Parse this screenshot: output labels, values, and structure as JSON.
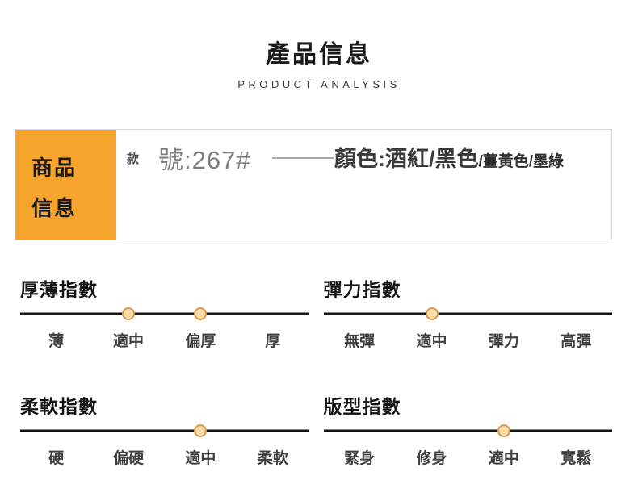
{
  "header": {
    "title": "產品信息",
    "subtitle": "PRODUCT ANALYSIS"
  },
  "info_box": {
    "label_line1": "商品",
    "label_line2": "信息",
    "style_prefix": "款",
    "style_number": "號:267#",
    "color_main": "顏色:酒紅/黑色",
    "color_extra": "/薑黃色/墨綠"
  },
  "colors": {
    "accent_orange": "#F7A42C",
    "dot_fill": "#FADCA8",
    "dot_border": "#D9994E",
    "slider_line": "#141414"
  },
  "indices": [
    {
      "title": "厚薄指數",
      "labels": [
        "薄",
        "適中",
        "偏厚",
        "厚"
      ],
      "dots": [
        1,
        2
      ]
    },
    {
      "title": "彈力指數",
      "labels": [
        "無彈",
        "適中",
        "彈力",
        "高彈"
      ],
      "dots": [
        1
      ]
    },
    {
      "title": "柔軟指數",
      "labels": [
        "硬",
        "偏硬",
        "適中",
        "柔軟"
      ],
      "dots": [
        2
      ]
    },
    {
      "title": "版型指數",
      "labels": [
        "緊身",
        "修身",
        "適中",
        "寬鬆"
      ],
      "dots": [
        2
      ]
    }
  ]
}
